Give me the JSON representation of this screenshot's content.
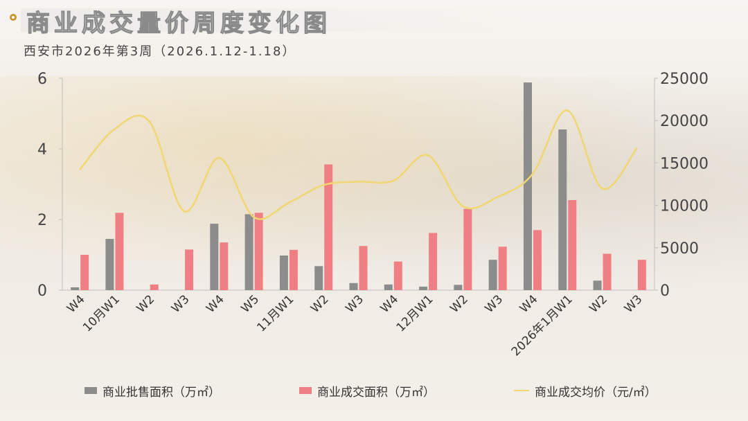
{
  "title": "商业成交量价周度变化图",
  "subtitle": "西安市2026年第3周（2026.1.12-1.18）",
  "colors": {
    "supply": "#8c8c8c",
    "deal_area": "#f07f84",
    "avg_price": "#f2d672",
    "title_bullet": "#c8962e"
  },
  "chart_data": {
    "type": "bar+line",
    "categories": [
      "W4",
      "10月W1",
      "W2",
      "W3",
      "W4",
      "W5",
      "11月W1",
      "W2",
      "W3",
      "W4",
      "12月W1",
      "W2",
      "W3",
      "W4",
      "2026年1月W1",
      "W2",
      "W3"
    ],
    "series": [
      {
        "name": "商业批售面积（万㎡）",
        "type": "bar",
        "axis": "left",
        "values": [
          0.08,
          1.45,
          0,
          0,
          1.88,
          2.15,
          0.98,
          0.68,
          0.2,
          0.16,
          0.1,
          0.15,
          0.86,
          5.88,
          4.55,
          0.27,
          0
        ]
      },
      {
        "name": "商业成交面积（万㎡）",
        "type": "bar",
        "axis": "left",
        "values": [
          1.0,
          2.19,
          0.16,
          1.15,
          1.35,
          2.19,
          1.14,
          3.56,
          1.25,
          0.81,
          1.62,
          2.3,
          1.23,
          1.7,
          2.55,
          1.03,
          0.86
        ]
      },
      {
        "name": "商业成交均价（元/㎡）",
        "type": "line",
        "axis": "right",
        "values": [
          14200,
          19000,
          19900,
          9300,
          15600,
          8600,
          10300,
          12400,
          12800,
          12900,
          15900,
          9900,
          11000,
          13700,
          21200,
          12000,
          16800
        ]
      }
    ],
    "y_left": {
      "min": 0,
      "max": 6,
      "ticks": [
        0,
        2,
        4,
        6
      ]
    },
    "y_right": {
      "min": 0,
      "max": 25000,
      "ticks": [
        0,
        5000,
        10000,
        15000,
        20000,
        25000
      ]
    },
    "grid": false,
    "legend_position": "bottom"
  }
}
